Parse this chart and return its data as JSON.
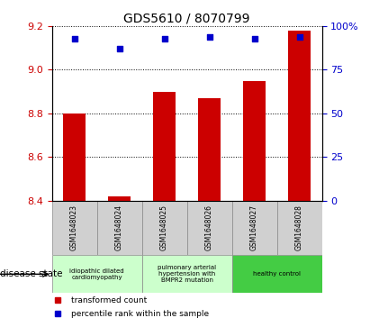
{
  "title": "GDS5610 / 8070799",
  "samples": [
    "GSM1648023",
    "GSM1648024",
    "GSM1648025",
    "GSM1648026",
    "GSM1648027",
    "GSM1648028"
  ],
  "transformed_count": [
    8.8,
    8.42,
    8.9,
    8.87,
    8.95,
    9.18
  ],
  "percentile_rank": [
    93,
    87,
    93,
    94,
    93,
    94
  ],
  "ylim_left": [
    8.4,
    9.2
  ],
  "ylim_right": [
    0,
    100
  ],
  "yticks_left": [
    8.4,
    8.6,
    8.8,
    9.0,
    9.2
  ],
  "yticks_right": [
    0,
    25,
    50,
    75,
    100
  ],
  "bar_color": "#cc0000",
  "dot_color": "#0000cc",
  "disease_groups": [
    {
      "label": "idiopathic dilated\ncardiomyopathy",
      "samples": [
        0,
        1
      ],
      "color": "#ccffcc"
    },
    {
      "label": "pulmonary arterial\nhypertension with\nBMPR2 mutation",
      "samples": [
        2,
        3
      ],
      "color": "#ccffcc"
    },
    {
      "label": "healthy control",
      "samples": [
        4,
        5
      ],
      "color": "#44cc44"
    }
  ],
  "legend_bar_label": "transformed count",
  "legend_dot_label": "percentile rank within the sample",
  "disease_state_label": "disease state",
  "tick_color_left": "#cc0000",
  "tick_color_right": "#0000cc",
  "bar_bottom": 8.4,
  "sample_cell_color": "#d0d0d0"
}
